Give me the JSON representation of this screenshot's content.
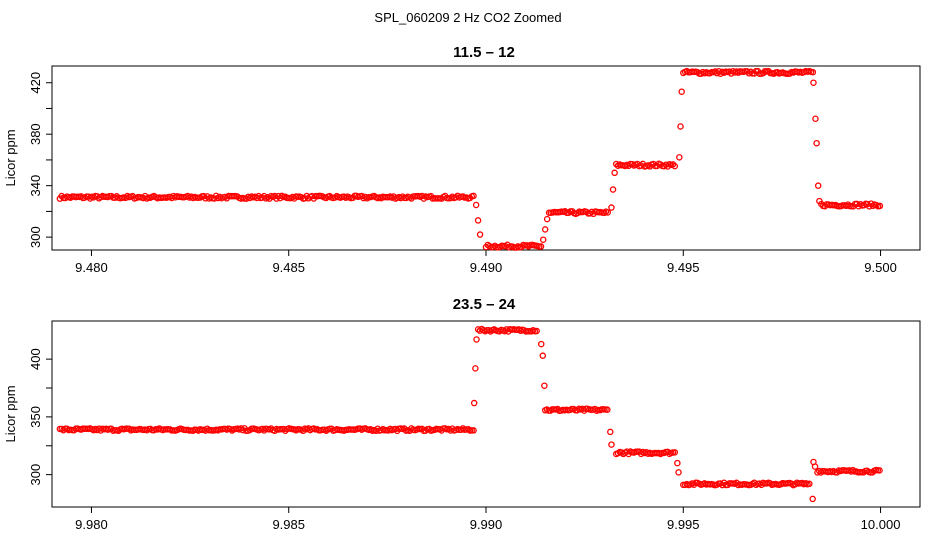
{
  "figure": {
    "suptitle": "SPL_060209  2 Hz CO2 Zoomed"
  },
  "colors": {
    "points": "#ff0000",
    "axes": "#000000"
  },
  "chart_data": [
    {
      "type": "scatter",
      "title": "11.5 – 12",
      "xlabel": "",
      "ylabel": "Licor ppm",
      "xlim": [
        9.479,
        9.501
      ],
      "ylim": [
        290,
        433
      ],
      "xticks": [
        9.48,
        9.485,
        9.49,
        9.495,
        9.5
      ],
      "xtick_labels": [
        "9.480",
        "9.485",
        "9.490",
        "9.495",
        "9.500"
      ],
      "yticks": [
        300,
        340,
        380,
        420
      ],
      "ytick_labels": [
        "300",
        "340",
        "380",
        "420"
      ],
      "grid": false,
      "marker": "open-circle",
      "segments": [
        {
          "x_start": 9.4792,
          "x_end": 9.4897,
          "y": 331
        },
        {
          "x_start": 9.49,
          "x_end": 9.4914,
          "y": 293
        },
        {
          "x_start": 9.4916,
          "x_end": 9.4931,
          "y": 319
        },
        {
          "x_start": 9.4933,
          "x_end": 9.4948,
          "y": 356
        },
        {
          "x_start": 9.495,
          "x_end": 9.4983,
          "y": 428
        },
        {
          "x_start": 9.4985,
          "x_end": 9.5,
          "y": 325
        }
      ],
      "transition_points": [
        {
          "x": 9.48975,
          "y": 325
        },
        {
          "x": 9.4898,
          "y": 313
        },
        {
          "x": 9.48985,
          "y": 302
        },
        {
          "x": 9.49145,
          "y": 298
        },
        {
          "x": 9.4915,
          "y": 306
        },
        {
          "x": 9.49155,
          "y": 314
        },
        {
          "x": 9.49318,
          "y": 323
        },
        {
          "x": 9.49322,
          "y": 337
        },
        {
          "x": 9.49326,
          "y": 350
        },
        {
          "x": 9.4949,
          "y": 362
        },
        {
          "x": 9.49493,
          "y": 386
        },
        {
          "x": 9.49496,
          "y": 413
        },
        {
          "x": 9.4983,
          "y": 420
        },
        {
          "x": 9.49835,
          "y": 392
        },
        {
          "x": 9.49838,
          "y": 373
        },
        {
          "x": 9.49842,
          "y": 340
        },
        {
          "x": 9.49845,
          "y": 328
        }
      ]
    },
    {
      "type": "scatter",
      "title": "23.5 – 24",
      "xlabel": "",
      "ylabel": "Licor ppm",
      "xlim": [
        9.979,
        10.001
      ],
      "ylim": [
        272,
        433
      ],
      "xticks": [
        9.98,
        9.985,
        9.99,
        9.995,
        10.0
      ],
      "xtick_labels": [
        "9.980",
        "9.985",
        "9.990",
        "9.995",
        "10.000"
      ],
      "yticks": [
        300,
        350,
        400
      ],
      "ytick_labels": [
        "300",
        "350",
        "400"
      ],
      "grid": false,
      "marker": "open-circle",
      "segments": [
        {
          "x_start": 9.9792,
          "x_end": 9.9897,
          "y": 339
        },
        {
          "x_start": 9.9898,
          "x_end": 9.9913,
          "y": 425
        },
        {
          "x_start": 9.9915,
          "x_end": 9.9931,
          "y": 356
        },
        {
          "x_start": 9.9933,
          "x_end": 9.9948,
          "y": 319
        },
        {
          "x_start": 9.995,
          "x_end": 9.9982,
          "y": 292
        },
        {
          "x_start": 9.9984,
          "x_end": 10.0,
          "y": 303
        }
      ],
      "transition_points": [
        {
          "x": 9.9897,
          "y": 362
        },
        {
          "x": 9.98973,
          "y": 392
        },
        {
          "x": 9.98976,
          "y": 417
        },
        {
          "x": 9.9914,
          "y": 413
        },
        {
          "x": 9.99144,
          "y": 403
        },
        {
          "x": 9.99148,
          "y": 377
        },
        {
          "x": 9.99315,
          "y": 337
        },
        {
          "x": 9.99318,
          "y": 326
        },
        {
          "x": 9.99485,
          "y": 310
        },
        {
          "x": 9.99488,
          "y": 302
        },
        {
          "x": 9.99828,
          "y": 279
        },
        {
          "x": 9.9983,
          "y": 311
        },
        {
          "x": 9.99834,
          "y": 307
        }
      ]
    }
  ]
}
